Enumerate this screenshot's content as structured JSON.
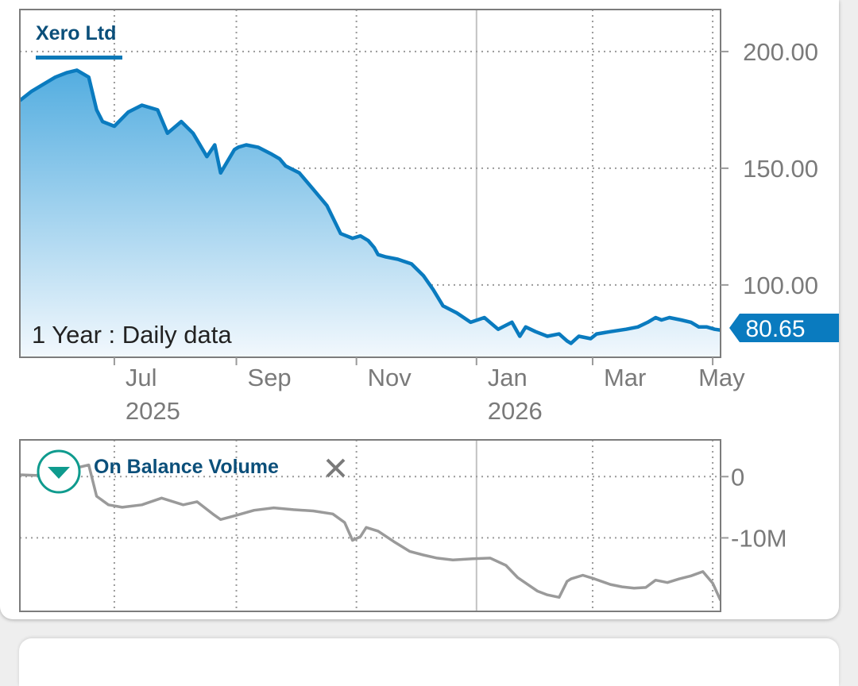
{
  "chart_data": [
    {
      "type": "area",
      "title": "Xero Ltd",
      "subtitle": "1 Year : Daily data",
      "last_value_label": "80.65",
      "last_value": 80.65,
      "ylim": [
        69,
        218
      ],
      "y_ticks": [
        {
          "value": 200,
          "label": "200.00"
        },
        {
          "value": 150,
          "label": "150.00"
        },
        {
          "value": 100,
          "label": "100.00"
        }
      ],
      "x_ticks": [
        {
          "date": "2025-07-01",
          "month": "Jul",
          "year": "2025"
        },
        {
          "date": "2025-09-01",
          "month": "Sep",
          "year": ""
        },
        {
          "date": "2025-11-01",
          "month": "Nov",
          "year": ""
        },
        {
          "date": "2026-01-01",
          "month": "Jan",
          "year": "2026"
        },
        {
          "date": "2026-03-01",
          "month": "Mar",
          "year": ""
        },
        {
          "date": "2026-05-01",
          "month": "May",
          "year": ""
        }
      ],
      "xlim": [
        "2025-05-14",
        "2026-05-05"
      ],
      "grid": true,
      "line_color": "#0a7bbf",
      "fill_top_color": "#53ade0",
      "fill_bottom_color": "#f2f8fd",
      "series": [
        {
          "x": [
            "2025-05-14",
            "2025-05-20",
            "2025-05-26",
            "2025-06-01",
            "2025-06-07",
            "2025-06-12",
            "2025-06-18",
            "2025-06-22",
            "2025-06-25",
            "2025-07-01",
            "2025-07-08",
            "2025-07-15",
            "2025-07-23",
            "2025-07-28",
            "2025-08-04",
            "2025-08-10",
            "2025-08-17",
            "2025-08-21",
            "2025-08-24",
            "2025-08-31",
            "2025-09-02",
            "2025-09-06",
            "2025-09-12",
            "2025-09-19",
            "2025-09-23",
            "2025-09-26",
            "2025-10-03",
            "2025-10-10",
            "2025-10-17",
            "2025-10-24",
            "2025-10-30",
            "2025-11-03",
            "2025-11-07",
            "2025-11-10",
            "2025-11-12",
            "2025-11-16",
            "2025-11-22",
            "2025-11-29",
            "2025-12-05",
            "2025-12-10",
            "2025-12-15",
            "2025-12-22",
            "2025-12-29",
            "2026-01-05",
            "2026-01-12",
            "2026-01-19",
            "2026-01-23",
            "2026-01-26",
            "2026-01-31",
            "2026-02-06",
            "2026-02-12",
            "2026-02-16",
            "2026-02-18",
            "2026-02-22",
            "2026-02-28",
            "2026-03-03",
            "2026-03-10",
            "2026-03-18",
            "2026-03-24",
            "2026-03-29",
            "2026-04-02",
            "2026-04-05",
            "2026-04-09",
            "2026-04-15",
            "2026-04-20",
            "2026-04-24",
            "2026-04-28",
            "2026-05-02",
            "2026-05-05"
          ],
          "values": [
            179,
            183,
            186,
            189,
            191,
            192,
            189,
            175,
            170,
            168,
            174,
            177,
            175,
            165,
            170,
            165,
            155,
            160,
            148,
            158,
            159,
            160,
            159,
            156,
            154,
            151,
            148,
            141,
            134,
            122,
            120,
            121,
            119,
            116,
            113,
            112,
            111,
            109,
            104,
            98,
            91,
            88,
            84,
            86,
            81,
            84,
            78,
            82,
            80,
            78,
            79,
            76,
            75,
            78,
            77,
            79,
            80,
            81,
            82,
            84,
            86,
            85,
            86,
            85,
            84,
            82,
            82,
            81,
            80.65
          ]
        }
      ]
    },
    {
      "type": "line",
      "title": "On Balance Volume",
      "ylim": [
        -22,
        6
      ],
      "y_ticks": [
        {
          "value": 0,
          "label": "0"
        },
        {
          "value": -10,
          "label": "-10M"
        }
      ],
      "xlim": [
        "2025-05-14",
        "2026-05-05"
      ],
      "grid": true,
      "line_color": "#9a9a9a",
      "series": [
        {
          "x": [
            "2025-05-14",
            "2025-05-22",
            "2025-06-01",
            "2025-06-10",
            "2025-06-18",
            "2025-06-22",
            "2025-06-28",
            "2025-07-05",
            "2025-07-15",
            "2025-07-25",
            "2025-08-05",
            "2025-08-12",
            "2025-08-20",
            "2025-08-24",
            "2025-08-31",
            "2025-09-10",
            "2025-09-20",
            "2025-09-30",
            "2025-10-10",
            "2025-10-20",
            "2025-10-26",
            "2025-10-30",
            "2025-11-03",
            "2025-11-06",
            "2025-11-12",
            "2025-11-20",
            "2025-11-28",
            "2025-12-05",
            "2025-12-12",
            "2025-12-20",
            "2025-12-30",
            "2026-01-08",
            "2026-01-16",
            "2026-01-22",
            "2026-01-27",
            "2026-02-01",
            "2026-02-06",
            "2026-02-12",
            "2026-02-16",
            "2026-02-18",
            "2026-02-24",
            "2026-03-02",
            "2026-03-10",
            "2026-03-16",
            "2026-03-22",
            "2026-03-28",
            "2026-04-02",
            "2026-04-08",
            "2026-04-14",
            "2026-04-20",
            "2026-04-26",
            "2026-05-01",
            "2026-05-05"
          ],
          "values": [
            0.3,
            0.2,
            0.6,
            1.3,
            1.9,
            -3.2,
            -4.6,
            -5.0,
            -4.6,
            -3.5,
            -4.6,
            -4.1,
            -6.1,
            -7.0,
            -6.4,
            -5.5,
            -5.1,
            -5.4,
            -5.6,
            -6.1,
            -7.5,
            -10.4,
            -9.8,
            -8.3,
            -8.9,
            -10.6,
            -12.2,
            -12.8,
            -13.3,
            -13.6,
            -13.4,
            -13.3,
            -14.5,
            -16.5,
            -17.6,
            -18.7,
            -19.3,
            -19.7,
            -17.1,
            -16.7,
            -16.1,
            -16.7,
            -17.6,
            -18.0,
            -18.2,
            -18.1,
            -16.9,
            -17.3,
            -16.7,
            -16.2,
            -15.5,
            -17.4,
            -20.2
          ]
        }
      ]
    }
  ]
}
